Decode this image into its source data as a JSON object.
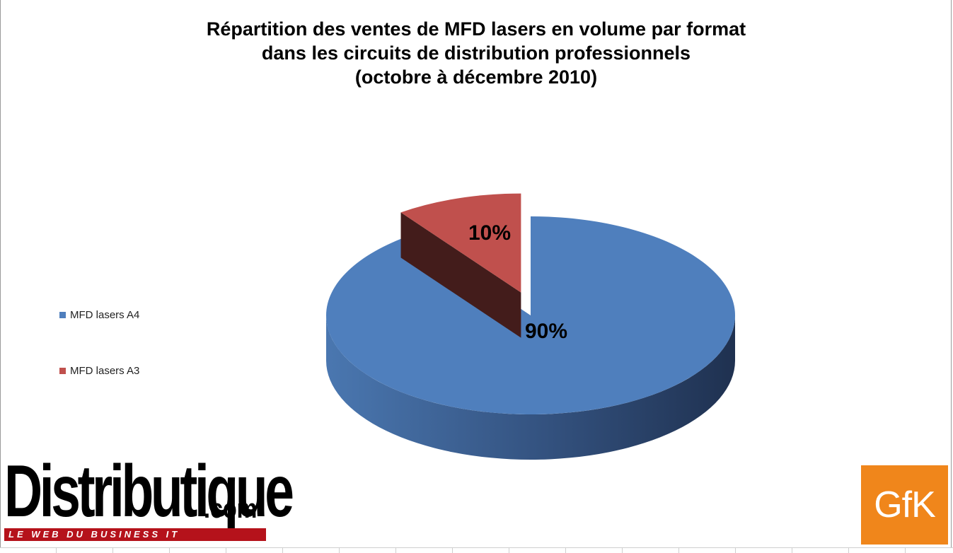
{
  "chart_data": {
    "type": "pie",
    "title_lines": [
      "Répartition des ventes de MFD lasers en volume par format",
      "dans les circuits de distribution professionnels",
      "(octobre à décembre 2010)"
    ],
    "slices": [
      {
        "label": "MFD lasers A4",
        "value": 90,
        "data_label": "90%",
        "color": "#4f7fbd"
      },
      {
        "label": "MFD lasers A3",
        "value": 10,
        "data_label": "10%",
        "color": "#c0504d"
      }
    ],
    "legend_placement": "left",
    "exploded_slice": "MFD lasers A3",
    "three_d": true
  },
  "logos": {
    "distributique_main": "Distributique",
    "distributique_com": ".com",
    "distributique_tagline": "LE WEB DU BUSINESS IT",
    "gfk": "GfK"
  }
}
